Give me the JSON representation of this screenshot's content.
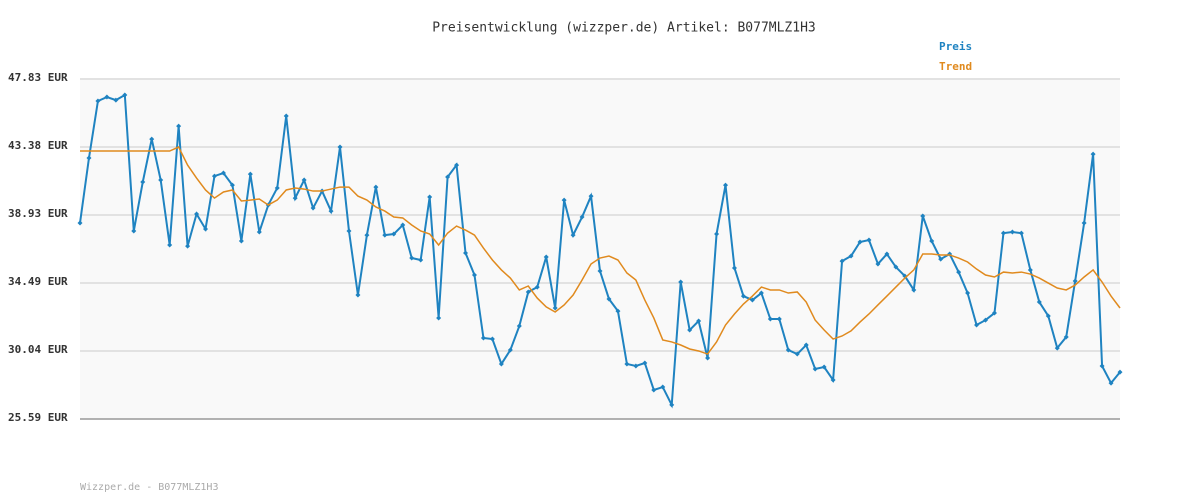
{
  "chart_data": {
    "type": "line",
    "title": "Preisentwicklung (wizzper.de) Artikel: B077MLZ1H3",
    "footer": "Wizzper.de - B077MLZ1H3",
    "ylim": [
      25.59,
      47.83
    ],
    "yticks": [
      {
        "value": 25.59,
        "label": "25.59 EUR"
      },
      {
        "value": 30.04,
        "label": "30.04 EUR"
      },
      {
        "value": 34.49,
        "label": "34.49 EUR"
      },
      {
        "value": 38.93,
        "label": "38.93 EUR"
      },
      {
        "value": 43.38,
        "label": "43.38 EUR"
      },
      {
        "value": 47.83,
        "label": "47.83 EUR"
      }
    ],
    "grid": true,
    "legend": "top-right",
    "series": [
      {
        "name": "Preis",
        "color": "#1f83c1",
        "markers": true,
        "values": [
          38.41,
          42.66,
          46.39,
          46.65,
          46.45,
          46.78,
          37.89,
          41.09,
          43.9,
          41.22,
          36.97,
          44.75,
          36.9,
          39.0,
          38.02,
          41.48,
          41.68,
          40.89,
          37.23,
          41.61,
          37.82,
          39.59,
          40.7,
          45.41,
          40.04,
          41.22,
          39.39,
          40.5,
          39.19,
          43.38,
          37.89,
          33.7,
          37.62,
          40.76,
          37.62,
          37.69,
          38.28,
          36.12,
          35.99,
          40.11,
          32.2,
          41.42,
          42.2,
          36.45,
          35.01,
          30.89,
          30.82,
          29.19,
          30.1,
          31.67,
          33.9,
          34.22,
          36.19,
          32.85,
          39.91,
          37.62,
          38.8,
          40.17,
          35.27,
          33.44,
          32.65,
          29.19,
          29.06,
          29.25,
          27.49,
          27.68,
          26.51,
          34.55,
          31.41,
          32.0,
          29.58,
          37.69,
          40.89,
          35.47,
          33.63,
          33.37,
          33.83,
          32.13,
          32.13,
          30.1,
          29.84,
          30.43,
          28.86,
          28.99,
          28.14,
          35.92,
          36.25,
          37.17,
          37.3,
          35.73,
          36.38,
          35.53,
          34.94,
          34.03,
          38.87,
          37.23,
          36.05,
          36.38,
          35.2,
          33.83,
          31.74,
          32.06,
          32.52,
          37.75,
          37.82,
          37.75,
          35.34,
          33.24,
          32.33,
          30.23,
          30.95,
          34.62,
          38.41,
          42.92,
          29.06,
          27.94,
          28.66
        ]
      },
      {
        "name": "Trend",
        "color": "#e08a1e",
        "markers": false,
        "values": [
          43.12,
          43.12,
          43.12,
          43.12,
          43.12,
          43.12,
          43.12,
          43.12,
          43.12,
          43.12,
          43.12,
          43.38,
          42.2,
          41.35,
          40.57,
          40.04,
          40.44,
          40.57,
          39.85,
          39.91,
          39.98,
          39.59,
          39.91,
          40.57,
          40.7,
          40.63,
          40.5,
          40.5,
          40.63,
          40.76,
          40.76,
          40.17,
          39.91,
          39.46,
          39.19,
          38.8,
          38.74,
          38.28,
          37.89,
          37.69,
          36.97,
          37.75,
          38.21,
          37.95,
          37.62,
          36.77,
          35.99,
          35.34,
          34.81,
          34.03,
          34.29,
          33.5,
          32.92,
          32.59,
          33.05,
          33.7,
          34.68,
          35.73,
          36.12,
          36.25,
          35.99,
          35.14,
          34.68,
          33.37,
          32.2,
          30.76,
          30.63,
          30.43,
          30.17,
          30.04,
          29.84,
          30.63,
          31.74,
          32.46,
          33.11,
          33.63,
          34.22,
          34.03,
          34.03,
          33.83,
          33.9,
          33.24,
          32.06,
          31.41,
          30.82,
          31.02,
          31.35,
          31.93,
          32.46,
          33.05,
          33.63,
          34.22,
          34.81,
          35.34,
          36.38,
          36.38,
          36.32,
          36.32,
          36.12,
          35.86,
          35.4,
          35.01,
          34.88,
          35.2,
          35.14,
          35.2,
          35.07,
          34.81,
          34.48,
          34.16,
          34.03,
          34.35,
          34.88,
          35.34,
          34.55,
          33.63,
          32.85
        ]
      }
    ]
  }
}
